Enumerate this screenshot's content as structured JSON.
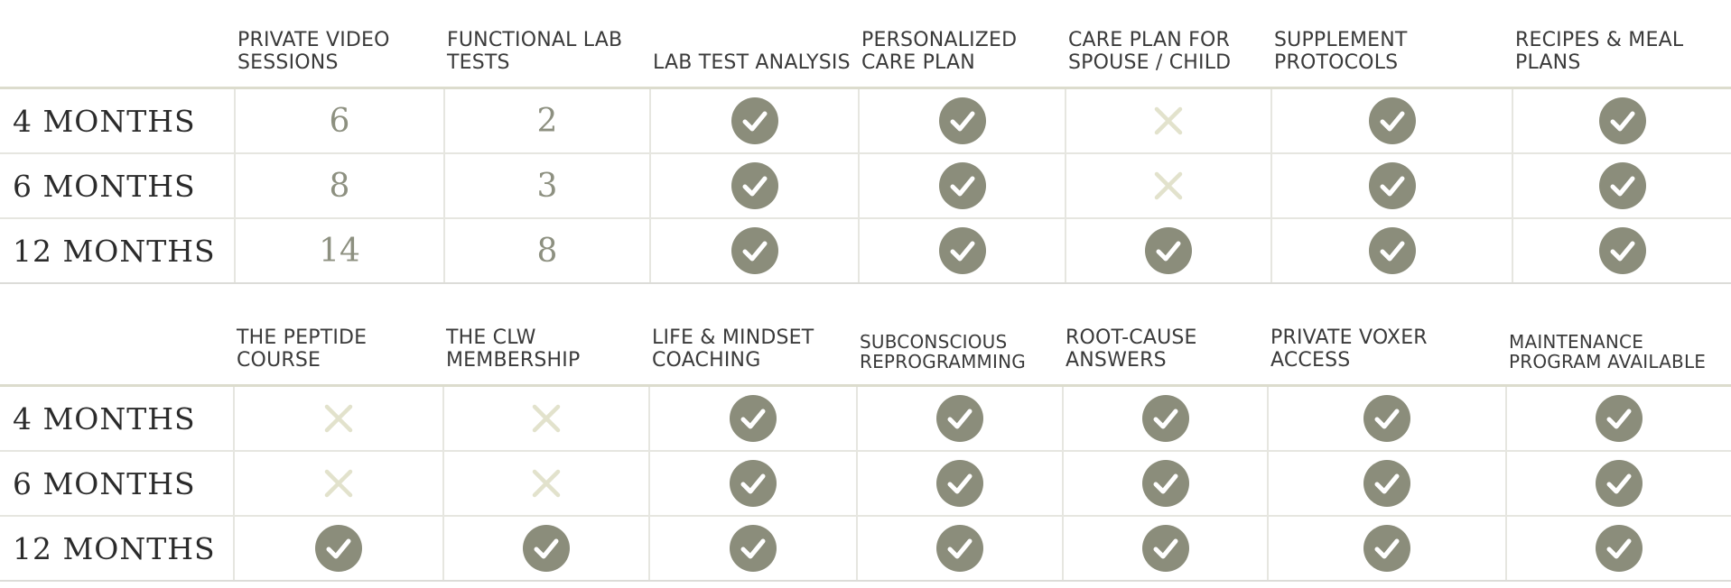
{
  "colors": {
    "check_fill": "#8b8d7b",
    "cross_color": "#e2e2cc",
    "number_color": "#8d9080",
    "divider": "#dcdccd"
  },
  "table1": {
    "headers": [
      "PRIVATE VIDEO SESSIONS",
      "FUNCTIONAL LAB TESTS",
      "LAB TEST ANALYSIS",
      "PERSONALIZED CARE PLAN",
      "CARE PLAN FOR SPOUSE / CHILD",
      "SUPPLEMENT PROTOCOLS",
      "RECIPES & MEAL PLANS"
    ],
    "rows": [
      {
        "label": "4 MONTHS",
        "cells": [
          "6",
          "2",
          "check",
          "check",
          "cross",
          "check",
          "check"
        ]
      },
      {
        "label": "6 MONTHS",
        "cells": [
          "8",
          "3",
          "check",
          "check",
          "cross",
          "check",
          "check"
        ]
      },
      {
        "label": "12 MONTHS",
        "cells": [
          "14",
          "8",
          "check",
          "check",
          "check",
          "check",
          "check"
        ]
      }
    ]
  },
  "table2": {
    "headers": [
      "THE PEPTIDE COURSE",
      "THE CLW MEMBERSHIP",
      "LIFE & MINDSET COACHING",
      "SUBCONSCIOUS REPROGRAMMING",
      "ROOT-CAUSE ANSWERS",
      "PRIVATE VOXER ACCESS",
      "MAINTENANCE PROGRAM AVAILABLE"
    ],
    "rows": [
      {
        "label": "4 MONTHS",
        "cells": [
          "cross",
          "cross",
          "check",
          "check",
          "check",
          "check",
          "check"
        ]
      },
      {
        "label": "6 MONTHS",
        "cells": [
          "cross",
          "cross",
          "check",
          "check",
          "check",
          "check",
          "check"
        ]
      },
      {
        "label": "12 MONTHS",
        "cells": [
          "check",
          "check",
          "check",
          "check",
          "check",
          "check",
          "check"
        ]
      }
    ]
  }
}
